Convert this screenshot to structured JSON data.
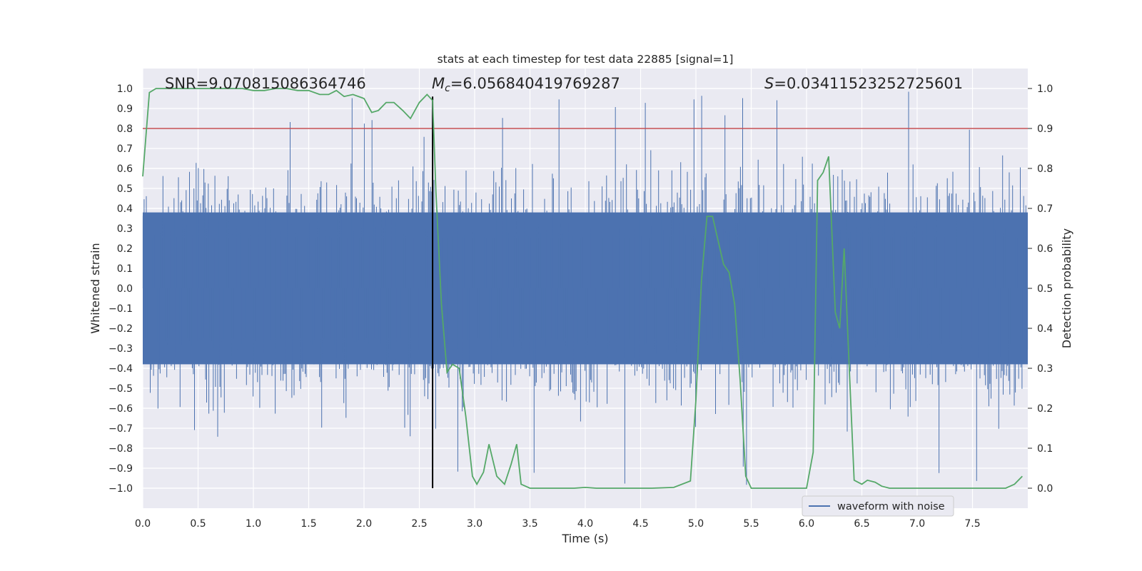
{
  "chart_data": {
    "type": "line",
    "title": "stats at each timestep for test data 22885 [signal=1]",
    "xlabel": "Time (s)",
    "ylabel": "Whitened strain",
    "y2label": "Detection probability",
    "xlim": [
      0.0,
      8.0
    ],
    "ylim": [
      -1.1,
      1.1
    ],
    "y2lim": [
      -0.05,
      1.05
    ],
    "x_ticks": [
      0.0,
      0.5,
      1.0,
      1.5,
      2.0,
      2.5,
      3.0,
      3.5,
      4.0,
      4.5,
      5.0,
      5.5,
      6.0,
      6.5,
      7.0,
      7.5
    ],
    "x_tick_labels": [
      "0.0",
      "0.5",
      "1.0",
      "1.5",
      "2.0",
      "2.5",
      "3.0",
      "3.5",
      "4.0",
      "4.5",
      "5.0",
      "5.5",
      "6.0",
      "6.5",
      "7.0",
      "7.5"
    ],
    "y_ticks": [
      -1.0,
      -0.9,
      -0.8,
      -0.7,
      -0.6,
      -0.5,
      -0.4,
      -0.3,
      -0.2,
      -0.1,
      0.0,
      0.1,
      0.2,
      0.3,
      0.4,
      0.5,
      0.6,
      0.7,
      0.8,
      0.9,
      1.0
    ],
    "y_tick_labels": [
      "−1.0",
      "−0.9",
      "−0.8",
      "−0.7",
      "−0.6",
      "−0.5",
      "−0.4",
      "−0.3",
      "−0.2",
      "−0.1",
      "0.0",
      "0.1",
      "0.2",
      "0.3",
      "0.4",
      "0.5",
      "0.6",
      "0.7",
      "0.8",
      "0.9",
      "1.0"
    ],
    "y2_ticks": [
      0.0,
      0.1,
      0.2,
      0.3,
      0.4,
      0.5,
      0.6,
      0.7,
      0.8,
      0.9,
      1.0
    ],
    "y2_tick_labels": [
      "0.0",
      "0.1",
      "0.2",
      "0.3",
      "0.4",
      "0.5",
      "0.6",
      "0.7",
      "0.8",
      "0.9",
      "1.0"
    ],
    "grid": true,
    "legend": {
      "position": "lower-right",
      "entries": [
        "waveform with noise"
      ]
    },
    "annotations": {
      "snr": "SNR=9.070815086364746",
      "mc_symbol": "M",
      "mc_sub": "c",
      "mc_value": "=6.056840419769287",
      "s_symbol": "S",
      "s_value": "=0.03411523252725601"
    },
    "threshold_line": {
      "y2": 0.9,
      "color": "#c44e52"
    },
    "merger_marker": {
      "x": 2.62,
      "y2_range": [
        0.0,
        0.98
      ],
      "color": "#000000"
    },
    "waveform": {
      "name": "waveform with noise",
      "color": "#4c72b0",
      "duration": 8.0,
      "core_envelope": 0.38,
      "spike_range": [
        0.45,
        1.0
      ]
    },
    "series": [
      {
        "name": "detection probability",
        "axis": "y2",
        "color": "#55a868",
        "x": [
          0.0,
          0.06,
          0.12,
          0.2,
          0.3,
          0.45,
          0.6,
          0.75,
          0.9,
          1.0,
          1.1,
          1.2,
          1.3,
          1.4,
          1.5,
          1.6,
          1.68,
          1.75,
          1.82,
          1.9,
          2.0,
          2.07,
          2.13,
          2.2,
          2.27,
          2.35,
          2.42,
          2.5,
          2.57,
          2.62,
          2.65,
          2.7,
          2.75,
          2.8,
          2.86,
          2.92,
          2.98,
          3.02,
          3.08,
          3.13,
          3.2,
          3.27,
          3.33,
          3.38,
          3.42,
          3.5,
          3.6,
          3.7,
          3.8,
          3.9,
          4.0,
          4.1,
          4.2,
          4.4,
          4.6,
          4.8,
          4.95,
          5.0,
          5.05,
          5.1,
          5.15,
          5.2,
          5.25,
          5.3,
          5.35,
          5.4,
          5.45,
          5.5,
          5.56,
          5.6,
          5.8,
          6.0,
          6.06,
          6.1,
          6.15,
          6.2,
          6.26,
          6.3,
          6.34,
          6.38,
          6.43,
          6.5,
          6.55,
          6.62,
          6.68,
          6.75,
          6.8,
          6.9,
          7.0,
          7.2,
          7.4,
          7.6,
          7.8,
          7.88,
          7.95
        ],
        "values": [
          0.78,
          0.99,
          1.0,
          1.0,
          1.0,
          1.0,
          1.0,
          1.0,
          1.0,
          0.995,
          0.995,
          1.0,
          1.0,
          0.995,
          0.995,
          0.985,
          0.985,
          0.995,
          0.98,
          0.985,
          0.975,
          0.94,
          0.945,
          0.965,
          0.965,
          0.945,
          0.925,
          0.965,
          0.985,
          0.97,
          0.74,
          0.46,
          0.29,
          0.31,
          0.3,
          0.18,
          0.03,
          0.01,
          0.04,
          0.11,
          0.03,
          0.01,
          0.06,
          0.11,
          0.01,
          0.0,
          0.0,
          0.0,
          0.0,
          0.0,
          0.002,
          0.0,
          0.0,
          0.0,
          0.0,
          0.002,
          0.018,
          0.22,
          0.52,
          0.68,
          0.68,
          0.62,
          0.56,
          0.54,
          0.46,
          0.27,
          0.03,
          0.0,
          0.0,
          0.0,
          0.0,
          0.0,
          0.09,
          0.77,
          0.79,
          0.83,
          0.44,
          0.4,
          0.6,
          0.34,
          0.02,
          0.01,
          0.02,
          0.015,
          0.005,
          0.0,
          0.0,
          0.0,
          0.0,
          0.0,
          0.0,
          0.0,
          0.0,
          0.01,
          0.03
        ]
      }
    ]
  }
}
